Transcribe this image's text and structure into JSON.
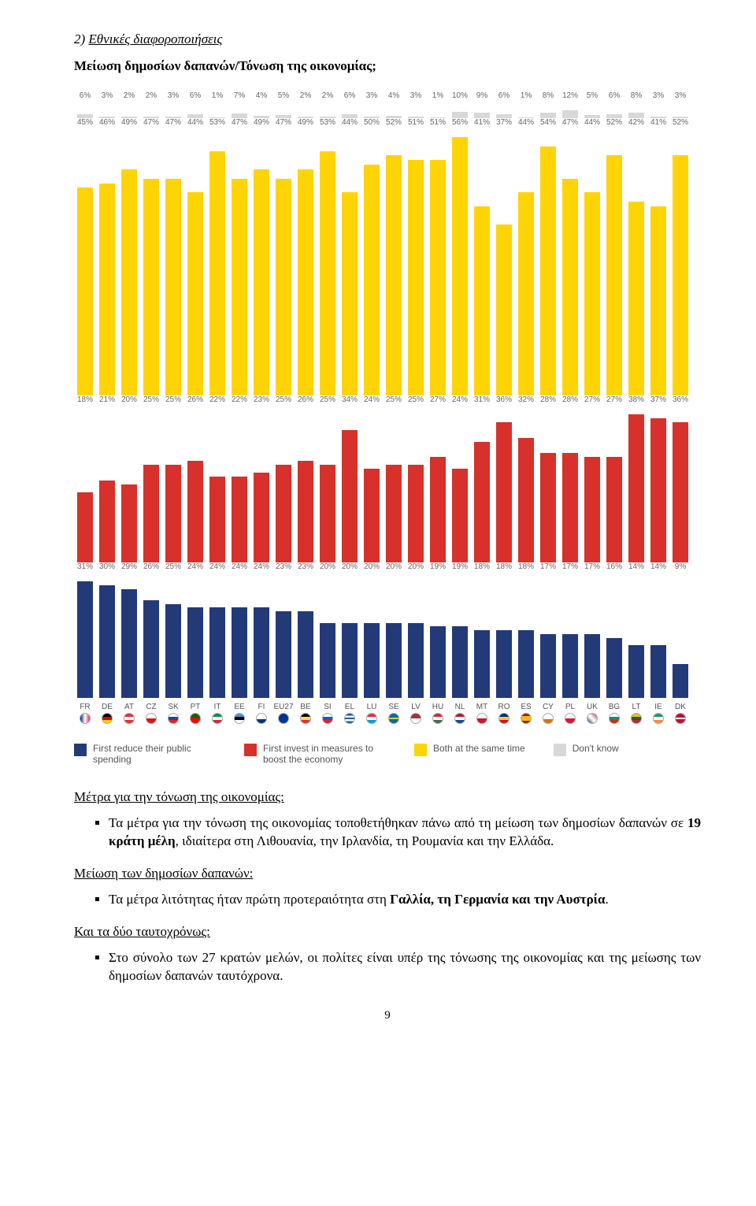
{
  "heading_num": "2)",
  "heading_text": "Εθνικές διαφοροποιήσεις",
  "subheading": "Μείωση δημοσίων δαπανών/Τόνωση της οικονομίας;",
  "chart": {
    "colors": {
      "gray": "#d8d8d8",
      "yellow": "#ffd404",
      "red": "#d8302a",
      "navy": "#223a78"
    },
    "gray_max": 12,
    "yellow_max": 56,
    "red_max": 38,
    "navy_max": 31,
    "countries": [
      "FR",
      "DE",
      "AT",
      "CZ",
      "SK",
      "PT",
      "IT",
      "EE",
      "FI",
      "EU27",
      "BE",
      "SI",
      "EL",
      "LU",
      "SE",
      "LV",
      "HU",
      "NL",
      "MT",
      "RO",
      "ES",
      "CY",
      "PL",
      "UK",
      "BG",
      "LT",
      "IE",
      "DK"
    ],
    "gray": [
      6,
      3,
      2,
      2,
      3,
      6,
      1,
      7,
      4,
      5,
      2,
      2,
      6,
      3,
      4,
      3,
      1,
      10,
      9,
      6,
      1,
      8,
      12,
      5,
      6,
      8,
      3,
      3
    ],
    "yellow": [
      45,
      46,
      49,
      47,
      47,
      44,
      53,
      47,
      49,
      47,
      49,
      53,
      44,
      50,
      52,
      51,
      51,
      56,
      41,
      37,
      44,
      54,
      47,
      44,
      52,
      42,
      41,
      52
    ],
    "red": [
      18,
      21,
      20,
      25,
      25,
      26,
      22,
      22,
      23,
      25,
      26,
      25,
      34,
      24,
      25,
      25,
      27,
      24,
      31,
      36,
      32,
      28,
      28,
      27,
      27,
      38,
      37,
      36
    ],
    "navy": [
      31,
      30,
      29,
      26,
      25,
      24,
      24,
      24,
      24,
      23,
      23,
      20,
      20,
      20,
      20,
      20,
      19,
      19,
      18,
      18,
      18,
      17,
      17,
      17,
      16,
      14,
      14,
      9
    ],
    "flag_colors": [
      "linear-gradient(to right,#002395,#fff,#ed2939)",
      "linear-gradient(#000 33%,#dd0000 33% 66%,#ffce00 66%)",
      "linear-gradient(#ed2939 33%,#fff 33% 66%,#ed2939 66%)",
      "linear-gradient(#fff 50%,#d7141a 50%)",
      "linear-gradient(#fff 33%,#0b4ea2 33% 66%,#ee1c25 66%)",
      "linear-gradient(#006600 40%,#ff0000 40%)",
      "linear-gradient(#009246 33%,#fff 33% 66%,#ce2b37 66%)",
      "linear-gradient(#4891d9 33%,#000 33% 66%,#fff 66%)",
      "linear-gradient(#fff 60%,#003580 60%)",
      "#003399",
      "linear-gradient(#000 33%,#fae042 33% 66%,#ed2939 66%)",
      "linear-gradient(#fff 33%,#005ce5 33% 66%,#ed1c24 66%)",
      "linear-gradient(#0d5eaf 20%,#fff 20% 40%,#0d5eaf 40% 60%,#fff 60% 80%,#0d5eaf 80%)",
      "linear-gradient(#ed2939 33%,#fff 33% 66%,#00a1de 66%)",
      "linear-gradient(#006aa7 40%,#fecc00 40% 60%,#006aa7 60%)",
      "linear-gradient(#9e3039 50%,#fff 50%)",
      "linear-gradient(#cd2a3e 33%,#fff 33% 66%,#436f4d 66%)",
      "linear-gradient(#ae1c28 33%,#fff 33% 66%,#21468b 66%)",
      "linear-gradient(#fff 50%,#cf142b 50%)",
      "linear-gradient(#002b7f 33%,#fcd116 33% 66%,#ce1126 66%)",
      "linear-gradient(#aa151b 25%,#f1bf00 25% 75%,#aa151b 75%)",
      "linear-gradient(#fff 60%,#d57800 60%)",
      "linear-gradient(#fff 50%,#dc143c 50%)",
      "linear-gradient(45deg,#012169,#fff 45% 55%,#c8102e)",
      "linear-gradient(#fff 33%,#00966e 33% 66%,#d62612 66%)",
      "linear-gradient(#fdb913 33%,#006a44 33% 66%,#c1272d 66%)",
      "linear-gradient(#169b62 33%,#fff 33% 66%,#ff883e 66%)",
      "linear-gradient(#c60c30 40%,#fff 40% 60%,#c60c30 60%)"
    ]
  },
  "legend": {
    "navy": "First reduce their public spending",
    "red": "First invest in measures to boost the economy",
    "yellow": "Both at the same time",
    "gray": "Don't know"
  },
  "body": {
    "p1": "Μέτρα για την τόνωση της οικονομίας:",
    "b1a": "Τα μέτρα για την τόνωση της οικονομίας τοποθετήθηκαν πάνω από τη μείωση των δημοσίων δαπανών σε ",
    "b1b": "19 κράτη μέλη",
    "b1c": ", ιδιαίτερα στη Λιθουανία, την Ιρλανδία, τη Ρουμανία και την Ελλάδα.",
    "p2": "Μείωση των δημοσίων δαπανών:",
    "b2a": "Τα μέτρα λιτότητας ήταν πρώτη προτεραιότητα στη ",
    "b2b": "Γαλλία, τη Γερμανία και την Αυστρία",
    "b2c": ".",
    "p3": "Και τα δύο ταυτοχρόνως:",
    "b3": "Στο σύνολο των 27 κρατών μελών, οι πολίτες είναι υπέρ της τόνωσης της οικονομίας και της μείωσης των δημοσίων δαπανών ταυτόχρονα."
  },
  "page_num": "9"
}
